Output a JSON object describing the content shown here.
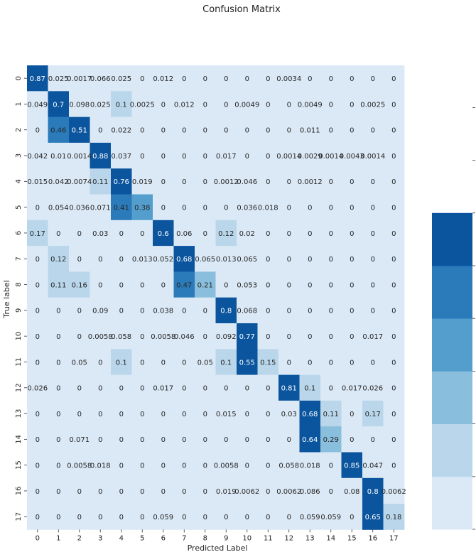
{
  "chart_data": {
    "type": "heatmap",
    "title": "Confusion Matrix",
    "xlabel": "Predicted Label",
    "ylabel": "True label",
    "x_categories": [
      "0",
      "1",
      "2",
      "3",
      "4",
      "5",
      "6",
      "7",
      "8",
      "9",
      "10",
      "11",
      "12",
      "13",
      "14",
      "15",
      "16",
      "17"
    ],
    "y_categories": [
      "0",
      "1",
      "2",
      "3",
      "4",
      "5",
      "6",
      "7",
      "8",
      "9",
      "10",
      "11",
      "12",
      "13",
      "14",
      "15",
      "16",
      "17"
    ],
    "cell_labels": [
      [
        "0.87",
        "0.025",
        "0.0017",
        "0.066",
        "0.025",
        "0",
        "0.012",
        "0",
        "0",
        "0",
        "0",
        "0",
        "0.0034",
        "0",
        "0",
        "0",
        "0",
        "0"
      ],
      [
        "0.049",
        "0.7",
        "0.098",
        "0.025",
        "0.1",
        "0.0025",
        "0",
        "0.012",
        "0",
        "0",
        "0.0049",
        "0",
        "0",
        "0.0049",
        "0",
        "0",
        "0.0025",
        "0"
      ],
      [
        "0",
        "0.46",
        "0.51",
        "0",
        "0.022",
        "0",
        "0",
        "0",
        "0",
        "0",
        "0",
        "0",
        "0",
        "0.011",
        "0",
        "0",
        "0",
        "0"
      ],
      [
        "0.042",
        "0.01",
        "0.0014",
        "0.88",
        "0.037",
        "0",
        "0",
        "0",
        "0",
        "0.017",
        "0",
        "0",
        "0.0014",
        "0.0029",
        "0.0014",
        "0.0043",
        "0.0014",
        "0"
      ],
      [
        "0.015",
        "0.042",
        "0.0074",
        "0.11",
        "0.76",
        "0.019",
        "0",
        "0",
        "0",
        "0.0012",
        "0.046",
        "0",
        "0",
        "0.0012",
        "0",
        "0",
        "0",
        "0"
      ],
      [
        "0",
        "0.054",
        "0.036",
        "0.071",
        "0.41",
        "0.38",
        "0",
        "0",
        "0",
        "0",
        "0.036",
        "0.018",
        "0",
        "0",
        "0",
        "0",
        "0",
        "0"
      ],
      [
        "0.17",
        "0",
        "0",
        "0.03",
        "0",
        "0",
        "0.6",
        "0.06",
        "0",
        "0.12",
        "0.02",
        "0",
        "0",
        "0",
        "0",
        "0",
        "0",
        "0"
      ],
      [
        "0",
        "0.12",
        "0",
        "0",
        "0",
        "0.013",
        "0.052",
        "0.68",
        "0.065",
        "0.013",
        "0.065",
        "0",
        "0",
        "0",
        "0",
        "0",
        "0",
        "0"
      ],
      [
        "0",
        "0.11",
        "0.16",
        "0",
        "0",
        "0",
        "0",
        "0.47",
        "0.21",
        "0",
        "0.053",
        "0",
        "0",
        "0",
        "0",
        "0",
        "0",
        "0"
      ],
      [
        "0",
        "0",
        "0",
        "0.09",
        "0",
        "0",
        "0.038",
        "0",
        "0",
        "0.8",
        "0.068",
        "0",
        "0",
        "0",
        "0",
        "0",
        "0",
        "0"
      ],
      [
        "0",
        "0",
        "0",
        "0.0058",
        "0.058",
        "0",
        "0.0058",
        "0.046",
        "0",
        "0.092",
        "0.77",
        "0",
        "0",
        "0",
        "0",
        "0",
        "0.017",
        "0"
      ],
      [
        "0",
        "0",
        "0.05",
        "0",
        "0.1",
        "0",
        "0",
        "0",
        "0.05",
        "0.1",
        "0.55",
        "0.15",
        "0",
        "0",
        "0",
        "0",
        "0",
        "0"
      ],
      [
        "0.026",
        "0",
        "0",
        "0",
        "0",
        "0",
        "0.017",
        "0",
        "0",
        "0",
        "0",
        "0",
        "0.81",
        "0.1",
        "0",
        "0.017",
        "0.026",
        "0"
      ],
      [
        "0",
        "0",
        "0",
        "0",
        "0",
        "0",
        "0",
        "0",
        "0",
        "0.015",
        "0",
        "0",
        "0.03",
        "0.68",
        "0.11",
        "0",
        "0.17",
        "0"
      ],
      [
        "0",
        "0",
        "0.071",
        "0",
        "0",
        "0",
        "0",
        "0",
        "0",
        "0",
        "0",
        "0",
        "0",
        "0.64",
        "0.29",
        "0",
        "0",
        "0"
      ],
      [
        "0",
        "0",
        "0.0058",
        "0.018",
        "0",
        "0",
        "0",
        "0",
        "0",
        "0.0058",
        "0",
        "0",
        "0.058",
        "0.018",
        "0",
        "0.85",
        "0.047",
        "0"
      ],
      [
        "0",
        "0",
        "0",
        "0",
        "0",
        "0",
        "0",
        "0",
        "0",
        "0.019",
        "0.0062",
        "0",
        "0.0062",
        "0.086",
        "0",
        "0.08",
        "0.8",
        "0.0062"
      ],
      [
        "0",
        "0",
        "0",
        "0",
        "0",
        "0",
        "0.059",
        "0",
        "0",
        "0",
        "0",
        "0",
        "0",
        "0.059",
        "0.059",
        "0",
        "0.65",
        "0.18"
      ]
    ],
    "color_bins": [
      0,
      0.1,
      0.2,
      0.3,
      0.4,
      0.5,
      0.6,
      0.7,
      0.8,
      0.9
    ],
    "colors": [
      "#dbe9f6",
      "#bad6eb",
      "#89bedc",
      "#539ecd",
      "#2b7bba",
      "#0b559f"
    ],
    "colorbar_ticks": [
      "0.0",
      "0.1",
      "0.2",
      "0.3",
      "0.4",
      "0.5",
      "0.6",
      "0.7",
      "0.8"
    ],
    "colorbar_range": [
      0,
      0.88
    ]
  }
}
